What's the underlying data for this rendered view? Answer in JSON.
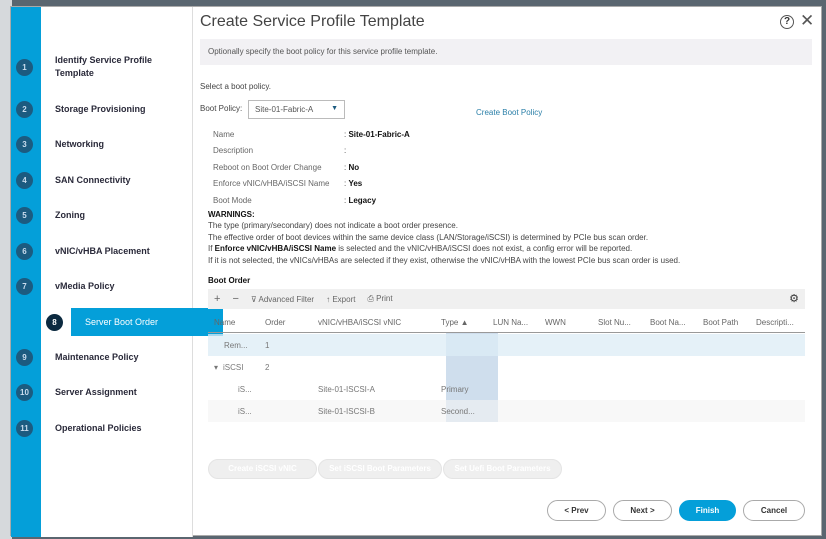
{
  "dialog": {
    "title": "Create Service Profile Template",
    "help": "?",
    "close": "✕",
    "banner": "Optionally specify the boot policy for this service profile template."
  },
  "steps": [
    {
      "num": "1",
      "label": "Identify Service Profile Template"
    },
    {
      "num": "2",
      "label": "Storage Provisioning"
    },
    {
      "num": "3",
      "label": "Networking"
    },
    {
      "num": "4",
      "label": "SAN Connectivity"
    },
    {
      "num": "5",
      "label": "Zoning"
    },
    {
      "num": "6",
      "label": "vNIC/vHBA Placement"
    },
    {
      "num": "7",
      "label": "vMedia Policy"
    },
    {
      "num": "8",
      "label": "Server Boot Order",
      "selected": true
    },
    {
      "num": "9",
      "label": "Maintenance Policy"
    },
    {
      "num": "10",
      "label": "Server Assignment"
    },
    {
      "num": "11",
      "label": "Operational Policies"
    }
  ],
  "form": {
    "prompt": "Select a boot policy.",
    "boot_policy_label": "Boot Policy:",
    "boot_policy_value": "Site-01-Fabric-A",
    "create_link": "Create Boot Policy",
    "props": [
      {
        "label": "Name",
        "value": "Site-01-Fabric-A"
      },
      {
        "label": "Description",
        "value": ""
      },
      {
        "label": "Reboot on Boot Order Change",
        "value": "No"
      },
      {
        "label": "Enforce vNIC/vHBA/iSCSI Name",
        "value": "Yes"
      },
      {
        "label": "Boot Mode",
        "value": "Legacy"
      }
    ]
  },
  "warnings": {
    "title": "WARNINGS:",
    "line1": "The type (primary/secondary) does not indicate a boot order presence.",
    "line2": "The effective order of boot devices within the same device class (LAN/Storage/iSCSI) is determined by PCIe bus scan order.",
    "line3_pre": "If ",
    "line3_bold": "Enforce vNIC/vHBA/iSCSI Name",
    "line3_post": " is selected and the vNIC/vHBA/iSCSI does not exist, a config error will be reported.",
    "line4": "If it is not selected, the vNICs/vHBAs are selected if they exist, otherwise the vNIC/vHBA with the lowest PCIe bus scan order is used."
  },
  "boot_order": {
    "title": "Boot Order",
    "toolbar": {
      "add": "+",
      "remove": "−",
      "filter": "Advanced Filter",
      "export": "Export",
      "print": "Print"
    },
    "columns": [
      "Name",
      "Order",
      "vNIC/vHBA/iSCSI vNIC",
      "Type ▲",
      "LUN Na...",
      "WWN",
      "Slot Nu...",
      "Boot Na...",
      "Boot Path",
      "Descripti..."
    ],
    "rows": [
      {
        "name": "Rem...",
        "order": "1",
        "vnic": "",
        "type": "",
        "selected": true
      },
      {
        "name": "iSCSI",
        "order": "2",
        "vnic": "",
        "type": "",
        "expanded": true
      },
      {
        "name": "iS...",
        "order": "",
        "vnic": "Site-01-ISCSI-A",
        "type": "Primary"
      },
      {
        "name": "iS...",
        "order": "",
        "vnic": "Site-01-ISCSI-B",
        "type": "Second..."
      }
    ]
  },
  "actions": {
    "create_iscsi": "Create iSCSI vNIC",
    "set_iscsi": "Set iSCSI Boot Parameters",
    "set_uefi": "Set Uefi Boot Parameters"
  },
  "footer": {
    "prev": "< Prev",
    "next": "Next >",
    "finish": "Finish",
    "cancel": "Cancel"
  },
  "colors": {
    "accent": "#049fd9",
    "step_circle": "#1c5b80"
  }
}
